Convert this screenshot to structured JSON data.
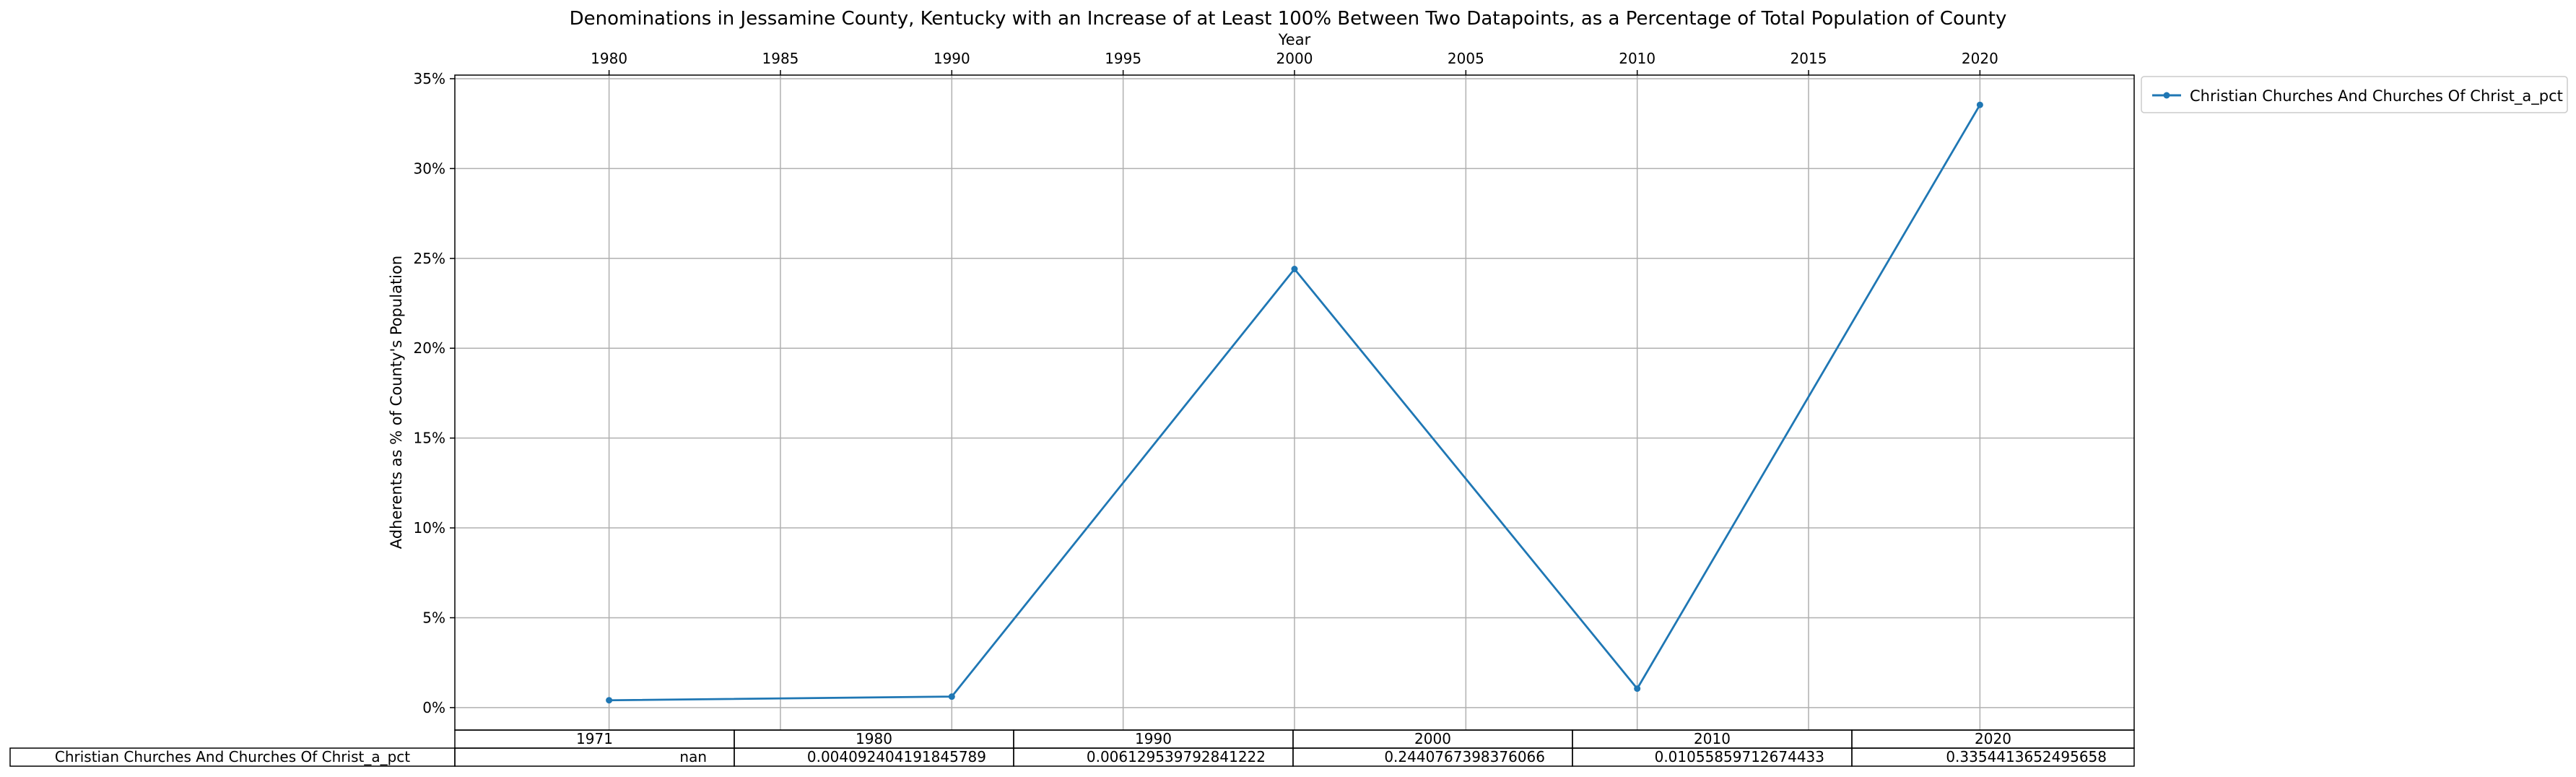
{
  "chart_data": {
    "type": "line",
    "title": "Denominations in Jessamine County, Kentucky with an Increase of at Least 100% Between Two Datapoints, as a Percentage of Total Population of County",
    "xlabel": "Year",
    "ylabel": "Adherents as % of County's Population",
    "x_ticks": [
      1980,
      1985,
      1990,
      1995,
      2000,
      2005,
      2010,
      2015,
      2020
    ],
    "y_ticks": [
      0,
      5,
      10,
      15,
      20,
      25,
      30,
      35
    ],
    "y_tick_labels": [
      "0%",
      "5%",
      "10%",
      "15%",
      "20%",
      "25%",
      "30%",
      "35%"
    ],
    "xlim": [
      1975.5,
      2024.5
    ],
    "ylim": [
      -1.25,
      35.2
    ],
    "grid": true,
    "x_axis_position": "top",
    "legend_placement": "outside-top-right",
    "series": [
      {
        "name": "Christian Churches And Churches Of Christ_a_pct",
        "color": "#1f77b4",
        "x": [
          1980,
          1990,
          2000,
          2010,
          2020
        ],
        "y": [
          0.409,
          0.613,
          24.408,
          1.056,
          33.544
        ]
      }
    ],
    "table": {
      "columns": [
        "1971",
        "1980",
        "1990",
        "2000",
        "2010",
        "2020"
      ],
      "rows": [
        {
          "label": "Christian Churches And Churches Of Christ_a_pct",
          "cells": [
            "nan",
            "0.004092404191845789",
            "0.006129539792841222",
            "0.2440767398376066",
            "0.010558597126744​33",
            "0.3354413652495658"
          ]
        }
      ]
    }
  }
}
